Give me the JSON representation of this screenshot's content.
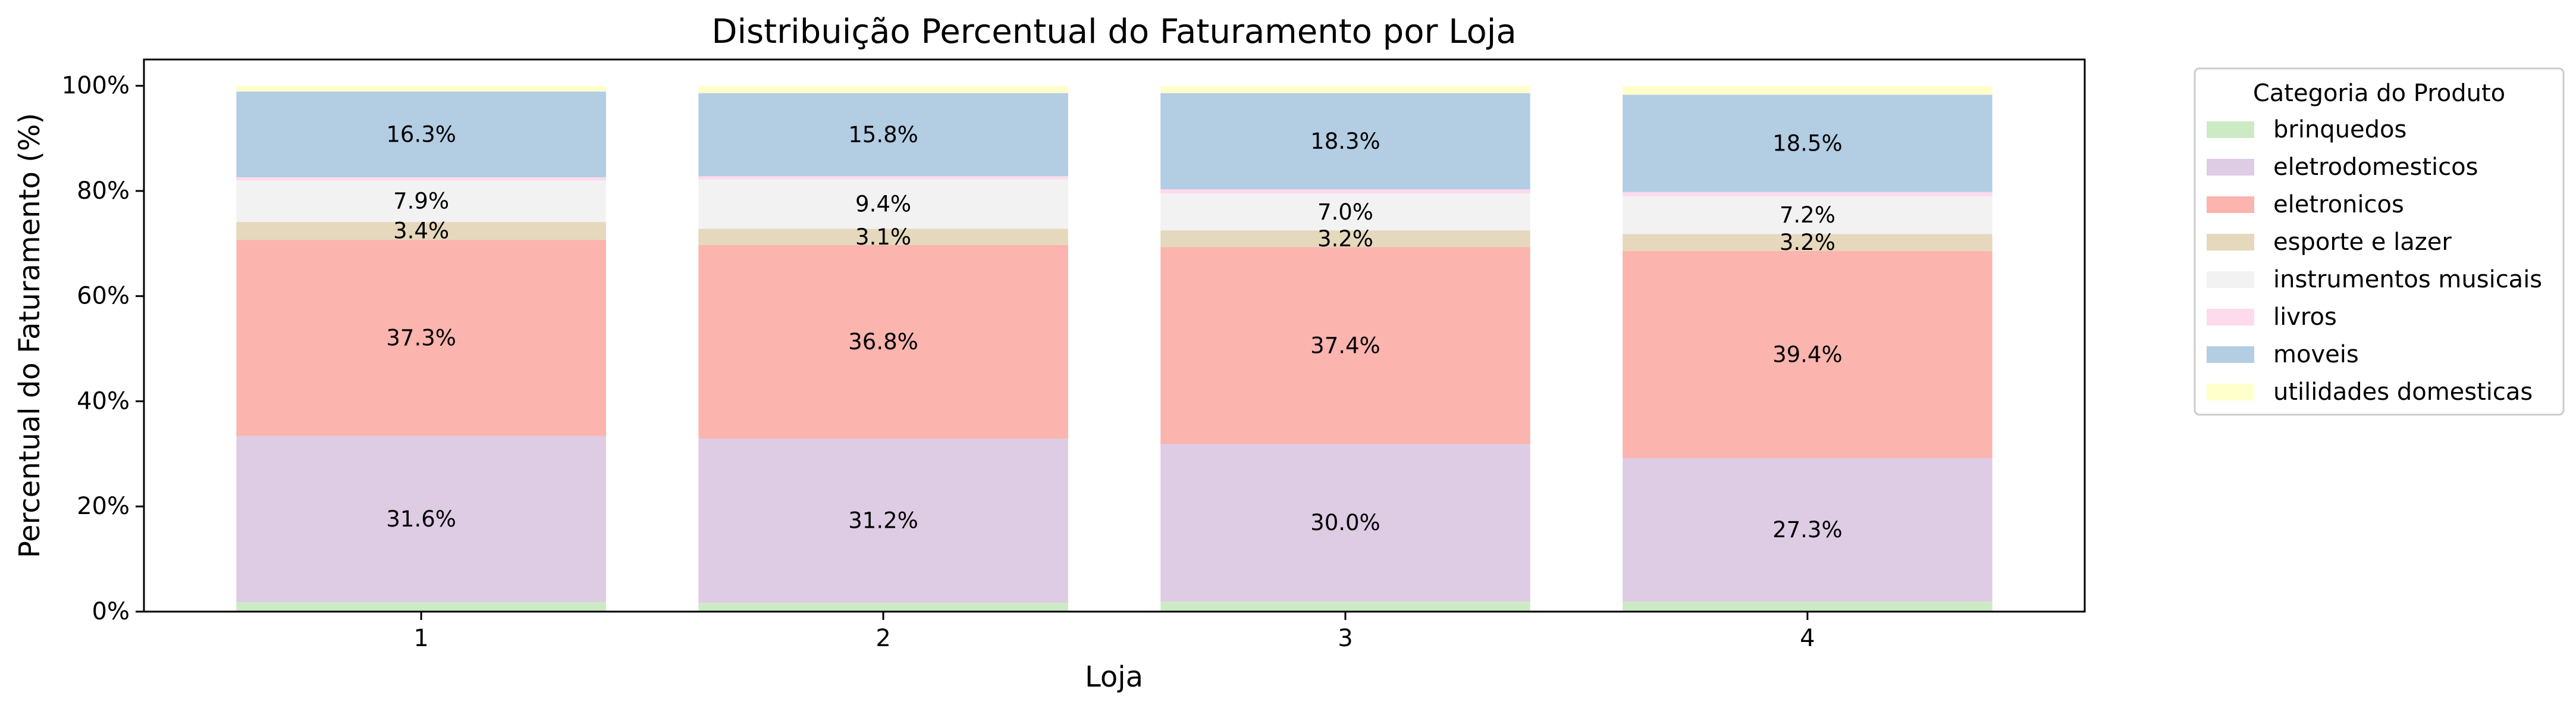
{
  "chart_data": {
    "type": "bar",
    "stacked": true,
    "title": "Distribuição Percentual do Faturamento por Loja",
    "xlabel": "Loja",
    "ylabel": "Percentual do Faturamento (%)",
    "ylim": [
      0,
      105
    ],
    "yticks": [
      0,
      20,
      40,
      60,
      80,
      100
    ],
    "ytick_labels": [
      "0%",
      "20%",
      "40%",
      "60%",
      "80%",
      "100%"
    ],
    "grid": false,
    "legend": {
      "title": "Categoria do Produto",
      "position": "outside-top-right"
    },
    "categories": [
      "1",
      "2",
      "3",
      "4"
    ],
    "label_threshold": 3,
    "series": [
      {
        "name": "brinquedos",
        "color": "#ccebc5",
        "values": [
          1.8,
          1.7,
          1.9,
          1.9
        ]
      },
      {
        "name": "eletrodomesticos",
        "color": "#decbe4",
        "values": [
          31.6,
          31.2,
          30.0,
          27.3
        ]
      },
      {
        "name": "eletronicos",
        "color": "#fbb4ae",
        "values": [
          37.3,
          36.8,
          37.4,
          39.4
        ]
      },
      {
        "name": "esporte e lazer",
        "color": "#e5d8bd",
        "values": [
          3.4,
          3.1,
          3.2,
          3.2
        ]
      },
      {
        "name": "instrumentos musicais",
        "color": "#f2f2f2",
        "values": [
          7.9,
          9.4,
          7.0,
          7.2
        ]
      },
      {
        "name": "livros",
        "color": "#fddaec",
        "values": [
          0.6,
          0.6,
          0.8,
          0.8
        ]
      },
      {
        "name": "moveis",
        "color": "#b3cde3",
        "values": [
          16.3,
          15.8,
          18.3,
          18.5
        ]
      },
      {
        "name": "utilidades domesticas",
        "color": "#ffffcc",
        "values": [
          1.1,
          1.4,
          1.4,
          1.7
        ]
      }
    ]
  }
}
